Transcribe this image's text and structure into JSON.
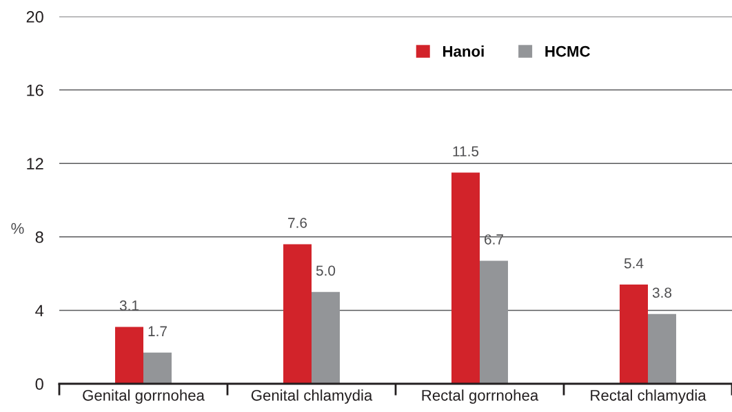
{
  "chart_data": {
    "type": "bar",
    "ylabel": "%",
    "categories": [
      "Genital gorrnohea",
      "Genital chlamydia",
      "Rectal gorrnohea",
      "Rectal chlamydia"
    ],
    "series": [
      {
        "name": "Hanoi",
        "color": "#d2232a",
        "values": [
          3.1,
          7.6,
          11.5,
          5.4
        ],
        "value_labels": [
          "3.1",
          "7.6",
          "11.5",
          "5.4"
        ]
      },
      {
        "name": "HCMC",
        "color": "#939598",
        "values": [
          1.7,
          5.0,
          6.7,
          3.8
        ],
        "value_labels": [
          "1.7",
          "5.0",
          "6.7",
          "3.8"
        ]
      }
    ],
    "ylim": [
      0,
      20
    ],
    "yticks": [
      0,
      4,
      8,
      12,
      16,
      20
    ],
    "grid": "y",
    "legend": "top right"
  }
}
